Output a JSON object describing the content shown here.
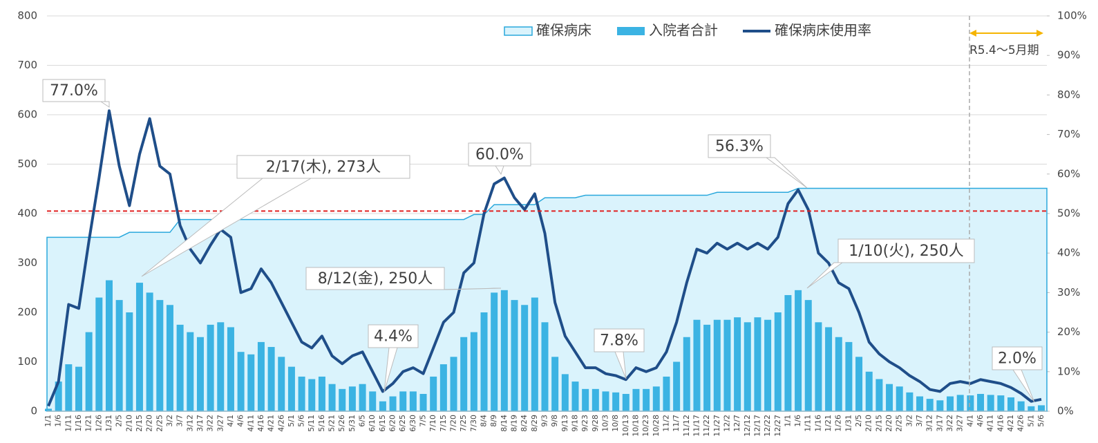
{
  "chart_data": {
    "type": "bar",
    "categories": [
      "1/1",
      "1/6",
      "1/11",
      "1/16",
      "1/21",
      "1/26",
      "1/31",
      "2/5",
      "2/10",
      "2/15",
      "2/20",
      "2/25",
      "3/2",
      "3/7",
      "3/12",
      "3/17",
      "3/22",
      "3/27",
      "4/1",
      "4/6",
      "4/11",
      "4/16",
      "4/21",
      "4/26",
      "5/1",
      "5/6",
      "5/11",
      "5/16",
      "5/21",
      "5/26",
      "5/31",
      "6/5",
      "6/10",
      "6/15",
      "6/20",
      "6/25",
      "6/30",
      "7/5",
      "7/10",
      "7/15",
      "7/20",
      "7/25",
      "7/30",
      "8/4",
      "8/9",
      "8/14",
      "8/19",
      "8/24",
      "8/29",
      "9/3",
      "9/8",
      "9/13",
      "9/18",
      "9/23",
      "9/28",
      "10/3",
      "10/8",
      "10/13",
      "10/18",
      "10/23",
      "10/28",
      "11/2",
      "11/7",
      "11/12",
      "11/17",
      "11/22",
      "11/27",
      "12/2",
      "12/7",
      "12/12",
      "12/17",
      "12/22",
      "12/27",
      "1/1",
      "1/6",
      "1/11",
      "1/16",
      "1/21",
      "1/26",
      "1/31",
      "2/5",
      "2/10",
      "2/15",
      "2/20",
      "2/25",
      "3/2",
      "3/7",
      "3/12",
      "3/17",
      "3/22",
      "3/27",
      "4/1",
      "4/6",
      "4/11",
      "4/16",
      "4/21",
      "4/26",
      "5/1",
      "5/6"
    ],
    "series": [
      {
        "name": "確保病床",
        "type": "area",
        "color": "#29a8dc",
        "fill": "#daf3fc",
        "values": [
          352,
          352,
          352,
          352,
          352,
          352,
          352,
          352,
          362,
          362,
          362,
          362,
          362,
          388,
          388,
          388,
          388,
          388,
          388,
          388,
          388,
          388,
          388,
          388,
          388,
          388,
          388,
          388,
          388,
          388,
          388,
          388,
          388,
          388,
          388,
          388,
          388,
          388,
          388,
          388,
          388,
          388,
          398,
          398,
          418,
          418,
          418,
          418,
          418,
          432,
          432,
          432,
          432,
          437,
          437,
          437,
          437,
          437,
          437,
          437,
          437,
          437,
          437,
          437,
          437,
          437,
          443,
          443,
          443,
          443,
          443,
          443,
          443,
          443,
          451,
          451,
          451,
          451,
          451,
          451,
          451,
          451,
          451,
          451,
          451,
          451,
          451,
          451,
          451,
          451,
          451,
          451,
          451,
          451,
          451,
          451,
          451,
          451,
          451
        ]
      },
      {
        "name": "入院者合計",
        "type": "bar",
        "color": "#3bb3e3",
        "values": [
          5,
          60,
          95,
          90,
          160,
          230,
          265,
          225,
          200,
          260,
          240,
          225,
          215,
          175,
          160,
          150,
          175,
          180,
          170,
          120,
          115,
          140,
          130,
          110,
          90,
          70,
          65,
          70,
          55,
          45,
          50,
          55,
          40,
          20,
          30,
          40,
          40,
          35,
          70,
          95,
          110,
          150,
          160,
          200,
          240,
          245,
          225,
          215,
          230,
          180,
          110,
          75,
          60,
          45,
          45,
          40,
          38,
          35,
          45,
          45,
          50,
          70,
          100,
          150,
          185,
          175,
          185,
          185,
          190,
          180,
          190,
          185,
          200,
          235,
          245,
          225,
          180,
          170,
          150,
          140,
          110,
          80,
          65,
          55,
          50,
          38,
          30,
          25,
          22,
          30,
          33,
          32,
          35,
          33,
          32,
          28,
          20,
          10,
          12
        ]
      },
      {
        "name": "確保病床使用率",
        "type": "line",
        "axis": "y2",
        "color": "#1f4e89",
        "values": [
          1.3,
          7.5,
          27,
          26,
          43,
          59,
          76,
          62,
          52,
          65,
          74,
          62,
          60,
          47,
          41,
          37.5,
          42,
          46,
          44,
          30,
          31,
          36,
          32.5,
          27.5,
          22.5,
          17.5,
          16,
          19,
          14,
          12,
          14,
          15,
          10,
          5,
          7,
          10,
          11,
          9.5,
          16,
          22.5,
          25,
          35,
          37.5,
          50,
          57.5,
          59,
          54,
          51,
          55,
          45,
          27.5,
          19,
          15,
          11,
          11,
          9.5,
          9,
          8,
          11,
          10,
          11,
          15,
          22.5,
          32.5,
          41,
          40,
          42.5,
          41,
          42.5,
          41,
          42.5,
          41,
          44,
          52.5,
          56,
          51,
          40,
          37.5,
          32.5,
          31,
          25,
          17.5,
          14.5,
          12.5,
          11,
          9,
          7.5,
          5.5,
          5,
          7,
          7.5,
          7,
          8,
          7.5,
          7,
          6,
          4.5,
          2.5,
          3
        ]
      }
    ],
    "ylim": [
      0,
      800
    ],
    "yticks": [
      0,
      100,
      200,
      300,
      400,
      500,
      600,
      700,
      800
    ],
    "y2lim": [
      0,
      100
    ],
    "y2ticks": [
      {
        "value": 0,
        "label": "0%"
      },
      {
        "value": 10,
        "label": "10%"
      },
      {
        "value": 20,
        "label": "20%"
      },
      {
        "value": 30,
        "label": "30%"
      },
      {
        "value": 40,
        "label": "40%"
      },
      {
        "value": 50,
        "label": "50%"
      },
      {
        "value": 60,
        "label": "60%"
      },
      {
        "value": 70,
        "label": "70%"
      },
      {
        "value": 80,
        "label": "80%"
      },
      {
        "value": 90,
        "label": "90%"
      },
      {
        "value": 100,
        "label": "100%"
      }
    ],
    "reference_line": {
      "value": 405,
      "color": "#e02020"
    },
    "grid": true,
    "legend": "top",
    "annotations": [
      {
        "text": "77.0%"
      },
      {
        "text": "2/17(木), 273人"
      },
      {
        "text": "60.0%"
      },
      {
        "text": "8/12(金), 250人"
      },
      {
        "text": "4.4%"
      },
      {
        "text": "7.8%"
      },
      {
        "text": "56.3%"
      },
      {
        "text": "1/10(火), 250人"
      },
      {
        "text": "2.0%"
      },
      {
        "text": "R5.4～5月期"
      }
    ]
  }
}
